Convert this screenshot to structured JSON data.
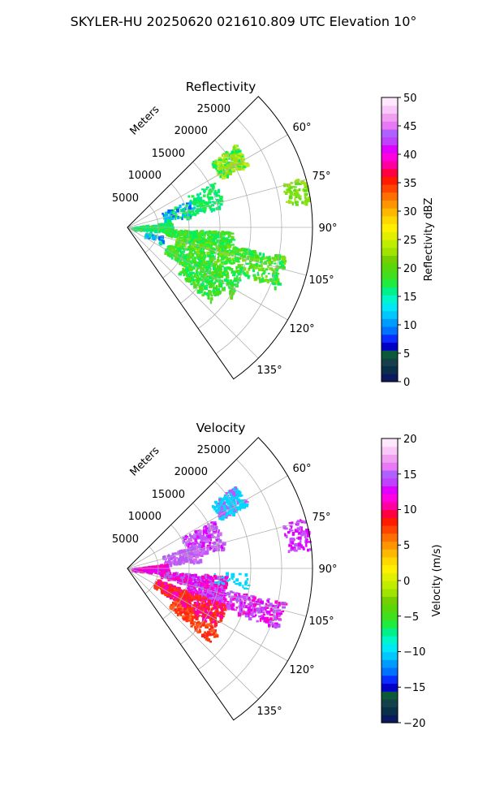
{
  "figure": {
    "suptitle": "SKYLER-HU  20250620  021610.809 UTC Elevation 10°"
  },
  "chart_data": [
    {
      "type": "heatmap",
      "title": "Reflectivity",
      "radial_axis_label": "Meters",
      "radial_ticks": [
        "5000",
        "10000",
        "15000",
        "20000",
        "25000"
      ],
      "radial_range": [
        0,
        30000
      ],
      "azimuth_range_deg": [
        45,
        145
      ],
      "azimuth_ticks": [
        "60°",
        "75°",
        "90°",
        "105°",
        "120°",
        "135°"
      ],
      "grid": true,
      "colorbar": {
        "label": "Reflectivity dBZ",
        "range": [
          0,
          50
        ],
        "ticks": [
          "0",
          "5",
          "10",
          "15",
          "20",
          "25",
          "30",
          "35",
          "40",
          "45",
          "50"
        ],
        "colors": [
          "#0b1a5e",
          "#0a2f4a",
          "#14404a",
          "#0a5a3a",
          "#0000c8",
          "#0a2cff",
          "#0072ff",
          "#009bff",
          "#00c8ff",
          "#00e8f5",
          "#00f5c8",
          "#00f08a",
          "#20ec40",
          "#40e020",
          "#58d808",
          "#74d000",
          "#a0e200",
          "#c0ec00",
          "#e0f000",
          "#fff000",
          "#ffd800",
          "#ffb800",
          "#ff9600",
          "#ff7000",
          "#ff4400",
          "#ff1a00",
          "#ff0040",
          "#ff00a0",
          "#ff00e0",
          "#e000ff",
          "#c040ff",
          "#b060ff",
          "#e878f5",
          "#f0a0f0",
          "#f8c8f8",
          "#fde8fd"
        ]
      },
      "echo_palette": [
        "#00f060",
        "#20f040",
        "#40e020",
        "#60dc18",
        "#80e010",
        "#a0e010",
        "#c0ec20",
        "#00e890",
        "#0060ff",
        "#00b8ff"
      ]
    },
    {
      "type": "heatmap",
      "title": "Velocity",
      "radial_axis_label": "Meters",
      "radial_ticks": [
        "5000",
        "10000",
        "15000",
        "20000",
        "25000"
      ],
      "radial_range": [
        0,
        30000
      ],
      "azimuth_range_deg": [
        45,
        145
      ],
      "azimuth_ticks": [
        "60°",
        "75°",
        "90°",
        "105°",
        "120°",
        "135°"
      ],
      "grid": true,
      "colorbar": {
        "label": "Velocity (m/s)",
        "range": [
          -20,
          20
        ],
        "ticks": [
          "−20",
          "−15",
          "−10",
          "−5",
          "0",
          "5",
          "10",
          "15",
          "20"
        ],
        "colors": [
          "#0b1a5e",
          "#0a2f4a",
          "#14404a",
          "#0a5a3a",
          "#0000c8",
          "#0a2cff",
          "#0072ff",
          "#009bff",
          "#00c8ff",
          "#00e8f5",
          "#00f5c8",
          "#00f08a",
          "#20ec40",
          "#40e020",
          "#58d808",
          "#74d000",
          "#a0e200",
          "#c0ec00",
          "#e0f000",
          "#fff000",
          "#ffd800",
          "#ffb800",
          "#ff9600",
          "#ff7000",
          "#ff4400",
          "#ff1a00",
          "#ff0040",
          "#ff00a0",
          "#ff00e0",
          "#e000ff",
          "#c040ff",
          "#b060ff",
          "#e878f5",
          "#f0a0f0",
          "#f8c8f8",
          "#fde8fd"
        ]
      },
      "echo_palette": [
        "#e000ff",
        "#ff00d0",
        "#c850ff",
        "#b060f0",
        "#d070f0",
        "#ff00a0",
        "#ff2020",
        "#ff3a00",
        "#ff6020",
        "#00d8ff"
      ]
    }
  ]
}
